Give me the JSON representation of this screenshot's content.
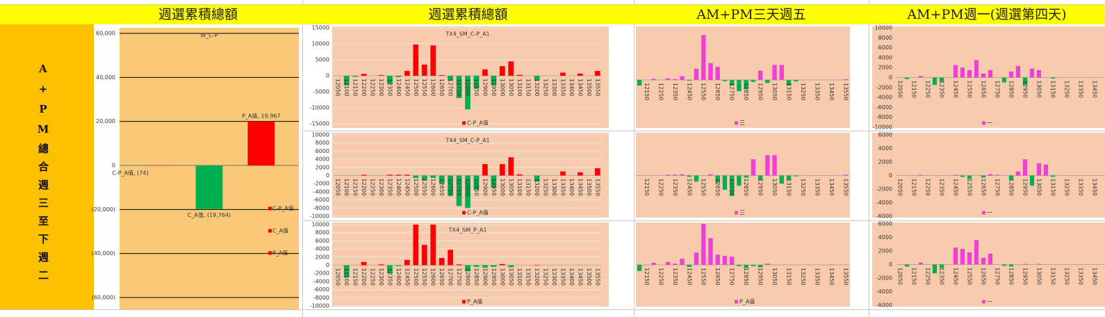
{
  "headers": [
    "週選累積總額",
    "週選累積總額",
    "AM+PM三天週五",
    "AM+PM週一(週選第四天)"
  ],
  "side_label": "A+PM總合週三至下週二",
  "chart_data": [
    {
      "type": "bar",
      "title": "W_C-P",
      "plot_color": "#f9c977",
      "grid": true,
      "grid_color": "#000000",
      "legend": "lower right",
      "ylim": [
        -60000,
        60000
      ],
      "yticks": [
        {
          "value": 60000,
          "label": "60,000"
        },
        {
          "value": 40000,
          "label": "40,000"
        },
        {
          "value": 20000,
          "label": "20,000"
        },
        0,
        {
          "value": -20000,
          "label": "(20,000)"
        },
        {
          "value": -40000,
          "label": "(40,000)"
        },
        {
          "value": -60000,
          "label": "(60,000)"
        }
      ],
      "series": [
        {
          "name": "C-P_A值",
          "color": "#ff0000",
          "values": [
            -74
          ],
          "value_labels": [
            "C-P_A值, (74)"
          ]
        },
        {
          "name": "C_A值",
          "color": "#00b050",
          "values": [
            -19764
          ],
          "value_labels": [
            "C_A值, (19,764)"
          ]
        },
        {
          "name": "P_A值",
          "color": "#ff0000",
          "values": [
            19967
          ],
          "value_labels": [
            "P_A值, 19,967"
          ]
        }
      ]
    },
    {
      "type": "bar",
      "title": "TX4_SM_C-P_A1",
      "plot_color": "#f8cbad",
      "grid": true,
      "grid_color": "#e6e6e6",
      "legend": "bottom",
      "ylim": [
        -15000,
        15000
      ],
      "yticks": [
        15000,
        10000,
        5000,
        0,
        -5000,
        -10000,
        -15000
      ],
      "categories": [
        12050,
        12100,
        12150,
        12200,
        12250,
        12300,
        12350,
        12400,
        12450,
        12500,
        12550,
        12600,
        12650,
        12700,
        12750,
        12800,
        12850,
        12900,
        12950,
        13000,
        13050,
        13100,
        13150,
        13200,
        13250,
        13300,
        13350,
        13400,
        13450,
        13500,
        13550
      ],
      "series": [
        {
          "name": "C-P_A值",
          "color": "#ff0000",
          "negative_color": "#00b050",
          "values": [
            0,
            -3000,
            -300,
            600,
            0,
            200,
            -2500,
            -400,
            1500,
            9800,
            3500,
            9500,
            200,
            -1500,
            -7000,
            -10500,
            -4000,
            2000,
            -3000,
            3000,
            4500,
            300,
            0,
            -1500,
            0,
            0,
            1000,
            0,
            700,
            0,
            1500
          ]
        }
      ]
    },
    {
      "type": "bar",
      "title": "TX4_SM_C-P_A1",
      "plot_color": "#f8cbad",
      "grid": true,
      "grid_color": "#e6e6e6",
      "legend": "bottom",
      "ylim": [
        -10000,
        10000
      ],
      "yticks": [
        10000,
        8000,
        6000,
        4000,
        2000,
        0,
        -2000,
        -4000,
        -6000,
        -8000,
        -10000
      ],
      "categories": [
        12050,
        12100,
        12150,
        12200,
        12250,
        12300,
        12350,
        12400,
        12450,
        12500,
        12550,
        12600,
        12650,
        12700,
        12750,
        12800,
        12850,
        12900,
        12950,
        13000,
        13050,
        13100,
        13150,
        13200,
        13250,
        13300,
        13350,
        13400,
        13450,
        13500,
        13550
      ],
      "series": [
        {
          "name": "C-P_A值",
          "color": "#ff0000",
          "negative_color": "#00b050",
          "values": [
            0,
            0,
            0,
            200,
            0,
            0,
            200,
            200,
            200,
            -600,
            -1200,
            -600,
            -2000,
            -5000,
            -7500,
            -8000,
            -3500,
            2800,
            -3000,
            2800,
            4500,
            300,
            0,
            -1500,
            0,
            0,
            1000,
            0,
            800,
            0,
            1800
          ]
        }
      ]
    },
    {
      "type": "bar",
      "title": "TX4_SM_P_A1",
      "plot_color": "#f8cbad",
      "grid": true,
      "grid_color": "#e6e6e6",
      "legend": "bottom",
      "ylim": [
        -10000,
        10000
      ],
      "yticks": [
        10000,
        8000,
        6000,
        4000,
        2000,
        0,
        -2000,
        -4000,
        -6000,
        -8000,
        -10000
      ],
      "categories": [
        12050,
        12100,
        12150,
        12200,
        12250,
        12300,
        12350,
        12400,
        12450,
        12500,
        12550,
        12600,
        12650,
        12700,
        12750,
        12800,
        12850,
        12900,
        12950,
        13000,
        13050,
        13100,
        13150,
        13200,
        13250,
        13300,
        13350,
        13400,
        13450,
        13500,
        13550
      ],
      "series": [
        {
          "name": "P_A值",
          "color": "#ff0000",
          "negative_color": "#00b050",
          "values": [
            0,
            -3000,
            0,
            800,
            0,
            200,
            -2000,
            -200,
            1300,
            10000,
            5000,
            10000,
            1800,
            3800,
            200,
            -1500,
            -400,
            -600,
            -400,
            300,
            -500,
            0,
            0,
            100,
            0,
            0,
            0,
            0,
            0,
            0,
            0
          ]
        }
      ]
    },
    {
      "type": "bar",
      "plot_color": "#f8cbad",
      "grid": false,
      "legend": "bottom",
      "ylim": [
        -13000,
        13000
      ],
      "categories": [
        null,
        12150,
        null,
        12250,
        null,
        12350,
        null,
        12450,
        null,
        12550,
        null,
        12650,
        null,
        12750,
        null,
        12850,
        null,
        12950,
        null,
        13050,
        null,
        13150,
        null,
        13250,
        null,
        13350,
        null,
        13450,
        null,
        13550
      ],
      "series": [
        {
          "name": "三",
          "color": "#f03fd6",
          "negative_color": "#00b050",
          "values": [
            -1500,
            0,
            300,
            0,
            400,
            200,
            1000,
            -200,
            3000,
            12000,
            4500,
            3500,
            -300,
            -1500,
            -3000,
            -2500,
            -500,
            2500,
            -800,
            4000,
            4000,
            -1500,
            -400,
            0,
            0,
            0,
            0,
            0,
            0,
            200
          ]
        }
      ]
    },
    {
      "type": "bar",
      "plot_color": "#f8cbad",
      "grid": false,
      "legend": "bottom",
      "ylim": [
        -10000,
        10000
      ],
      "categories": [
        null,
        12150,
        null,
        12250,
        null,
        12350,
        null,
        12450,
        null,
        12550,
        null,
        12650,
        null,
        12750,
        null,
        12850,
        null,
        12950,
        null,
        13050,
        null,
        13150,
        null,
        13250,
        null,
        13350,
        null,
        13450,
        null,
        13550
      ],
      "series": [
        {
          "name": "三",
          "color": "#f03fd6",
          "negative_color": "#00b050",
          "values": [
            0,
            0,
            0,
            0,
            200,
            200,
            300,
            -300,
            -1500,
            0,
            300,
            -1800,
            -3500,
            -5000,
            -2500,
            -500,
            4000,
            -1000,
            5000,
            5000,
            -2000,
            -1000,
            -200,
            0,
            0,
            0,
            0,
            0,
            0,
            200
          ]
        }
      ]
    },
    {
      "type": "bar",
      "plot_color": "#f8cbad",
      "grid": false,
      "legend": "bottom",
      "ylim": [
        -10000,
        10000
      ],
      "categories": [
        null,
        12150,
        null,
        12250,
        null,
        12350,
        null,
        12450,
        null,
        12550,
        null,
        12650,
        null,
        12750,
        null,
        12850,
        null,
        12950,
        null,
        13050,
        null,
        13150,
        null,
        13250,
        null,
        13350,
        null,
        13450,
        null,
        13550
      ],
      "series": [
        {
          "name": "P_A值",
          "color": "#f03fd6",
          "negative_color": "#00b050",
          "values": [
            -1500,
            0,
            500,
            0,
            700,
            300,
            1500,
            -500,
            3000,
            10000,
            6500,
            2500,
            2200,
            2000,
            -300,
            -800,
            -300,
            -600,
            300,
            0,
            0,
            0,
            0,
            0,
            0,
            0,
            0,
            100,
            0,
            0
          ]
        }
      ]
    },
    {
      "type": "bar",
      "plot_color": "#f8cbad",
      "grid": false,
      "legend": "bottom",
      "ylim": [
        -10000,
        10000
      ],
      "yticks": [
        10000,
        8000,
        6000,
        4000,
        2000,
        0,
        -2000,
        -4000,
        -6000,
        -8000,
        -10000
      ],
      "categories": [
        12050,
        null,
        12150,
        null,
        12250,
        null,
        12350,
        null,
        12450,
        null,
        12550,
        null,
        12650,
        null,
        12750,
        null,
        12850,
        null,
        12950,
        null,
        13050,
        null,
        13150,
        null,
        13250,
        null,
        13350,
        null,
        13450,
        null
      ],
      "series": [
        {
          "name": "一",
          "color": "#f03fd6",
          "negative_color": "#00b050",
          "values": [
            0,
            -300,
            0,
            300,
            0,
            -1500,
            -800,
            0,
            2500,
            2000,
            1500,
            3500,
            800,
            1500,
            0,
            -1000,
            1200,
            2300,
            -1500,
            1800,
            1500,
            0,
            -200,
            0,
            0,
            0,
            0,
            0,
            0,
            0
          ]
        }
      ]
    },
    {
      "type": "bar",
      "plot_color": "#f8cbad",
      "grid": false,
      "legend": "bottom",
      "ylim": [
        -6000,
        6000
      ],
      "yticks": [
        6000,
        4000,
        2000,
        0,
        -2000,
        -4000,
        -6000
      ],
      "categories": [
        12050,
        null,
        12150,
        null,
        12250,
        null,
        12350,
        null,
        12450,
        null,
        12550,
        null,
        12650,
        null,
        12750,
        null,
        12850,
        null,
        12950,
        null,
        13050,
        null,
        13150,
        null,
        13250,
        null,
        13350,
        null,
        13450,
        null
      ],
      "series": [
        {
          "name": "一",
          "color": "#f03fd6",
          "negative_color": "#00b050",
          "values": [
            0,
            0,
            0,
            100,
            0,
            0,
            0,
            0,
            100,
            -200,
            -500,
            0,
            -300,
            200,
            100,
            0,
            -600,
            600,
            2400,
            -1500,
            1800,
            1600,
            -200,
            0,
            0,
            0,
            0,
            0,
            0,
            0
          ]
        }
      ]
    },
    {
      "type": "bar",
      "plot_color": "#f8cbad",
      "grid": false,
      "legend": "bottom",
      "ylim": [
        -6000,
        6000
      ],
      "yticks": [
        6000,
        4000,
        2000,
        0,
        -2000,
        -4000,
        -6000
      ],
      "categories": [
        12050,
        null,
        12150,
        null,
        12250,
        null,
        12350,
        null,
        12450,
        null,
        12550,
        null,
        12650,
        null,
        12750,
        null,
        12850,
        null,
        12950,
        null,
        13050,
        null,
        13150,
        null,
        13250,
        null,
        13350,
        null,
        13450,
        null
      ],
      "series": [
        {
          "name": "一",
          "color": "#f03fd6",
          "negative_color": "#00b050",
          "values": [
            0,
            -300,
            0,
            300,
            0,
            -1300,
            -500,
            0,
            2500,
            2300,
            1800,
            3600,
            1000,
            1600,
            0,
            -200,
            -300,
            0,
            100,
            0,
            100,
            0,
            0,
            0,
            0,
            0,
            0,
            0,
            0,
            0
          ]
        }
      ]
    }
  ]
}
